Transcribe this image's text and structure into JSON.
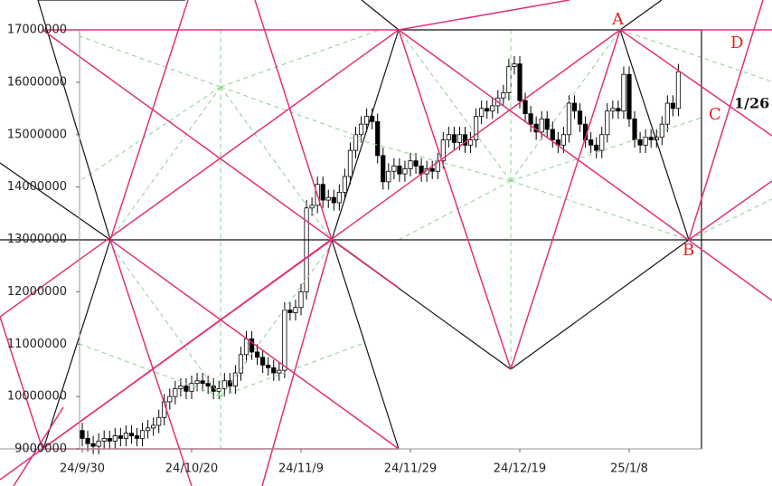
{
  "chart_data": {
    "type": "candlestick",
    "categories": [
      "24/9/30",
      null,
      null,
      null,
      null,
      null,
      null,
      null,
      null,
      null,
      null,
      null,
      null,
      null,
      null,
      null,
      null,
      null,
      null,
      null,
      "24/10/20",
      null,
      null,
      null,
      null,
      null,
      null,
      null,
      null,
      null,
      null,
      null,
      null,
      null,
      null,
      null,
      null,
      null,
      null,
      null,
      "24/11/9",
      null,
      null,
      null,
      null,
      null,
      null,
      null,
      null,
      null,
      null,
      null,
      null,
      null,
      null,
      null,
      null,
      null,
      null,
      null,
      "24/11/29",
      null,
      null,
      null,
      null,
      null,
      null,
      null,
      null,
      null,
      null,
      null,
      null,
      null,
      null,
      null,
      null,
      null,
      null,
      null,
      "24/12/19",
      null,
      null,
      null,
      null,
      null,
      null,
      null,
      null,
      null,
      null,
      null,
      null,
      null,
      null,
      null,
      null,
      null,
      null,
      null,
      "25/1/8",
      null,
      null,
      null,
      null,
      null,
      null,
      null,
      null,
      null
    ],
    "open": [
      9350000,
      9200000,
      9100000,
      9050000,
      9150000,
      9200000,
      9150000,
      9250000,
      9200000,
      9300000,
      9250000,
      9200000,
      9350000,
      9400000,
      9450000,
      9600000,
      9900000,
      10000000,
      10150000,
      10200000,
      10100000,
      10250000,
      10300000,
      10250000,
      10200000,
      10100000,
      10150000,
      10300000,
      10200000,
      10450000,
      10800000,
      11100000,
      10850000,
      10750000,
      10600000,
      10550000,
      10450000,
      10500000,
      11650000,
      11600000,
      11700000,
      12000000,
      13600000,
      13650000,
      14050000,
      13750000,
      13800000,
      13700000,
      13900000,
      14200000,
      14700000,
      15000000,
      15200000,
      15350000,
      15250000,
      14600000,
      14100000,
      14300000,
      14400000,
      14250000,
      14350000,
      14500000,
      14400000,
      14250000,
      14350000,
      14300000,
      14500000,
      14900000,
      15000000,
      14850000,
      15000000,
      14800000,
      14900000,
      15350000,
      15500000,
      15450000,
      15550000,
      15700000,
      15800000,
      16300000,
      16350000,
      15650000,
      15400000,
      15200000,
      15050000,
      15300000,
      15100000,
      14900000,
      14800000,
      15000000,
      15600000,
      15450000,
      15200000,
      14900000,
      14800000,
      14700000,
      15000000,
      15450000,
      15500000,
      15450000,
      16150000,
      15300000,
      14900000,
      14800000,
      14950000,
      14900000,
      14950000,
      15200000,
      15600000,
      15500000
    ],
    "high": [
      9500000,
      9350000,
      9250000,
      9300000,
      9350000,
      9350000,
      9400000,
      9400000,
      9450000,
      9450000,
      9400000,
      9500000,
      9550000,
      9600000,
      9750000,
      10050000,
      10150000,
      10300000,
      10350000,
      10350000,
      10400000,
      10450000,
      10450000,
      10400000,
      10350000,
      10300000,
      10450000,
      10450000,
      10600000,
      10950000,
      11250000,
      11250000,
      11000000,
      10900000,
      10750000,
      10700000,
      10650000,
      11800000,
      11800000,
      11850000,
      12150000,
      13750000,
      13800000,
      14200000,
      14200000,
      13950000,
      13950000,
      14050000,
      14350000,
      14850000,
      15150000,
      15350000,
      15500000,
      15500000,
      15400000,
      14750000,
      14450000,
      14550000,
      14550000,
      14500000,
      14650000,
      14650000,
      14550000,
      14500000,
      14500000,
      14650000,
      15050000,
      15150000,
      15150000,
      15150000,
      15150000,
      15050000,
      15500000,
      15650000,
      15650000,
      15700000,
      15850000,
      15950000,
      16450000,
      16500000,
      16500000,
      15800000,
      15550000,
      15350000,
      15450000,
      15450000,
      15250000,
      15050000,
      15150000,
      15750000,
      15750000,
      15600000,
      15350000,
      15050000,
      14950000,
      15150000,
      15600000,
      15650000,
      15650000,
      16300000,
      16300000,
      15450000,
      15050000,
      15100000,
      15100000,
      15100000,
      15350000,
      15750000,
      15750000,
      16350000
    ],
    "low": [
      9050000,
      8950000,
      8900000,
      8900000,
      9000000,
      9000000,
      9000000,
      9050000,
      9050000,
      9100000,
      9050000,
      9050000,
      9200000,
      9250000,
      9300000,
      9450000,
      9750000,
      9850000,
      10000000,
      9950000,
      9950000,
      10100000,
      10100000,
      10050000,
      9950000,
      9950000,
      10000000,
      10050000,
      10050000,
      10300000,
      10650000,
      10700000,
      10600000,
      10450000,
      10400000,
      10300000,
      10300000,
      10350000,
      11450000,
      11450000,
      11550000,
      11850000,
      13450000,
      13500000,
      13600000,
      13600000,
      13550000,
      13550000,
      13750000,
      14050000,
      14550000,
      14850000,
      15050000,
      15100000,
      14450000,
      13950000,
      13950000,
      14150000,
      14100000,
      14100000,
      14200000,
      14250000,
      14100000,
      14100000,
      14150000,
      14150000,
      14350000,
      14750000,
      14700000,
      14700000,
      14650000,
      14650000,
      14750000,
      15200000,
      15300000,
      15300000,
      15400000,
      15550000,
      15650000,
      16150000,
      15500000,
      15250000,
      15050000,
      14900000,
      14900000,
      14950000,
      14750000,
      14650000,
      14650000,
      14850000,
      15300000,
      15050000,
      14750000,
      14650000,
      14550000,
      14550000,
      14850000,
      15300000,
      15300000,
      15300000,
      15150000,
      14750000,
      14650000,
      14650000,
      14750000,
      14750000,
      14800000,
      15050000,
      15350000,
      15350000
    ],
    "close": [
      9200000,
      9100000,
      9050000,
      9150000,
      9200000,
      9150000,
      9250000,
      9200000,
      9300000,
      9250000,
      9200000,
      9350000,
      9400000,
      9450000,
      9600000,
      9900000,
      10000000,
      10150000,
      10200000,
      10100000,
      10250000,
      10300000,
      10250000,
      10200000,
      10100000,
      10150000,
      10300000,
      10200000,
      10450000,
      10800000,
      11100000,
      10850000,
      10750000,
      10600000,
      10550000,
      10450000,
      10500000,
      11650000,
      11600000,
      11700000,
      12000000,
      13600000,
      13650000,
      14050000,
      13750000,
      13800000,
      13700000,
      13900000,
      14200000,
      14700000,
      15000000,
      15200000,
      15350000,
      15250000,
      14600000,
      14100000,
      14300000,
      14400000,
      14250000,
      14350000,
      14500000,
      14400000,
      14250000,
      14350000,
      14300000,
      14500000,
      14900000,
      15000000,
      14850000,
      15000000,
      14800000,
      14900000,
      15350000,
      15500000,
      15450000,
      15550000,
      15700000,
      15800000,
      16300000,
      16350000,
      15650000,
      15400000,
      15200000,
      15050000,
      15300000,
      15100000,
      14900000,
      14800000,
      15000000,
      15600000,
      15450000,
      15200000,
      14900000,
      14800000,
      14700000,
      15000000,
      15450000,
      15500000,
      15450000,
      16150000,
      15300000,
      14900000,
      14800000,
      14950000,
      14900000,
      14950000,
      15200000,
      15600000,
      15500000,
      16200000
    ],
    "ylim": [
      9000000,
      17000000
    ],
    "yticks": [
      9000000,
      10000000,
      11000000,
      12000000,
      13000000,
      14000000,
      15000000,
      16000000,
      17000000
    ],
    "up_color": "#ffffff",
    "down_color": "#000000",
    "annotations": [
      "A",
      "B",
      "C",
      "D",
      "1/26"
    ]
  }
}
